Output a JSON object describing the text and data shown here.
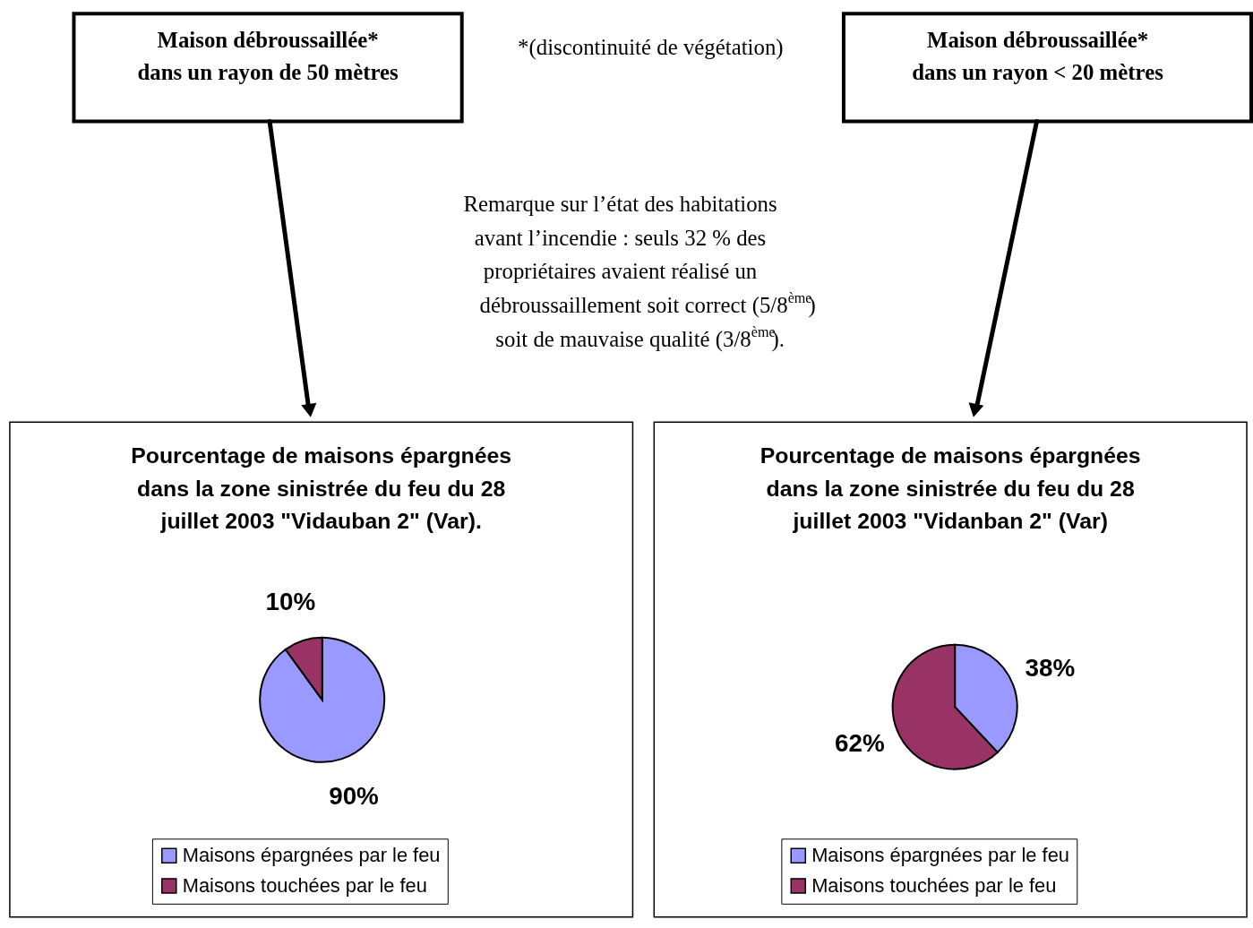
{
  "chart_data": [
    {
      "type": "pie",
      "title": "Pourcentage de maisons épargnées\ndans la zone sinistrée du feu du 28\njuillet 2003 \"Vidauban 2\" (Var).",
      "categories": [
        "Maisons épargnées par le feu",
        "Maisons touchées par le feu"
      ],
      "values": [
        90,
        10
      ],
      "colors": [
        "#9999ff",
        "#993366"
      ],
      "value_labels": [
        "90%",
        "10%"
      ],
      "legend": "bottom",
      "annotations": [
        "Maison débroussaillée*\ndans un rayon de 50 mètres",
        "*(discontinuité de végétation)",
        "Remarque sur l’état des habitations\navant l’incendie : seuls 32 % des\npropriétaires avaient réalisé un\ndébroussaillement soit correct (5/8$^{ème}$)\nsoit de mauvaise qualité (3/8$^{ème}$)."
      ]
    },
    {
      "type": "pie",
      "title": "Pourcentage de maisons épargnées\ndans la zone sinistrée du feu du 28\njuillet 2003 \"Vidanban 2\" (Var)",
      "categories": [
        "Maisons épargnées par le feu",
        "Maisons touchées par le feu"
      ],
      "values": [
        38,
        62
      ],
      "colors": [
        "#9999ff",
        "#993366"
      ],
      "value_labels": [
        "38%",
        "62%"
      ],
      "legend": "bottom",
      "annotations": [
        "Maison débroussaillée*\ndans un rayon < 20 mètres"
      ]
    }
  ]
}
